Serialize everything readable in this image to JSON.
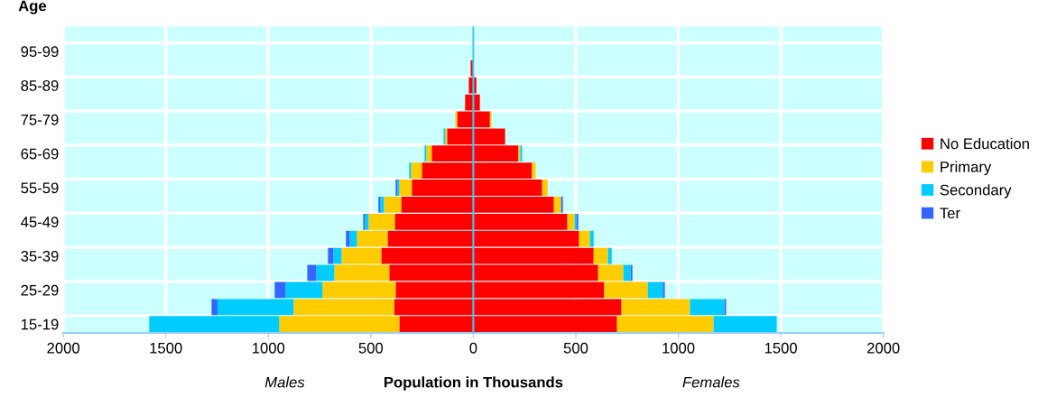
{
  "chart_data": {
    "type": "bar",
    "orientation": "horizontal",
    "stacked": true,
    "ylabel": "Age",
    "xlabel": "Population in Thousands",
    "annotations": [
      "Males",
      "Females"
    ],
    "categories": [
      "95-99",
      null,
      "85-89",
      null,
      "75-79",
      null,
      "65-69",
      null,
      "55-59",
      null,
      "45-49",
      null,
      "35-39",
      null,
      "25-29",
      null,
      "15-19"
    ],
    "series": [
      {
        "color": "#ff0000",
        "values": [
          0,
          -13,
          -22,
          -40,
          -79,
          -128,
          -203,
          -251,
          -300,
          -352,
          -383,
          -418,
          -449,
          -410,
          -379,
          -386,
          -361
        ]
      },
      {
        "color": "#ffcc00",
        "values": [
          0,
          0,
          0,
          0,
          -9,
          -9,
          -26,
          -53,
          -61,
          -84,
          -128,
          -150,
          -194,
          -268,
          -357,
          -491,
          -586
        ]
      },
      {
        "color": "#00ccff",
        "values": [
          0,
          0,
          0,
          0,
          0,
          -8,
          -9,
          -9,
          -9,
          -18,
          -18,
          -35,
          -40,
          -88,
          -180,
          -371,
          -634
        ]
      },
      {
        "color": "#3366ff",
        "values": [
          0,
          0,
          0,
          0,
          0,
          0,
          0,
          0,
          -9,
          -9,
          -8,
          -18,
          -26,
          -44,
          -53,
          -29,
          0
        ]
      },
      {
        "name": "No Education",
        "color": "#ff0000",
        "values": [
          0,
          2,
          15,
          32,
          81,
          155,
          220,
          286,
          336,
          393,
          459,
          516,
          587,
          609,
          639,
          723,
          701
        ]
      },
      {
        "name": "Primary",
        "color": "#ffcc00",
        "values": [
          0,
          0,
          0,
          0,
          8,
          0,
          9,
          18,
          26,
          35,
          35,
          53,
          70,
          123,
          212,
          334,
          471
        ]
      },
      {
        "name": "Secondary",
        "color": "#00ccff",
        "values": [
          0,
          0,
          0,
          0,
          0,
          0,
          9,
          0,
          0,
          0,
          9,
          18,
          18,
          35,
          74,
          168,
          308
        ]
      },
      {
        "name": "Ter",
        "color": "#3366ff",
        "values": [
          0,
          0,
          0,
          0,
          0,
          0,
          0,
          0,
          0,
          9,
          9,
          0,
          0,
          9,
          9,
          8,
          0
        ]
      }
    ],
    "xlim": [
      -2000,
      2000
    ],
    "xticks": [
      {
        "value": -2000,
        "label": "2000"
      },
      {
        "value": -1500,
        "label": "1500"
      },
      {
        "value": -1000,
        "label": "1000"
      },
      {
        "value": -500,
        "label": "500"
      },
      0,
      500,
      1000,
      1500,
      2000
    ],
    "ref_lines": [
      {
        "axis": "x",
        "value": 0,
        "color": "#33ccff"
      }
    ],
    "grid": true,
    "legend": "right"
  }
}
